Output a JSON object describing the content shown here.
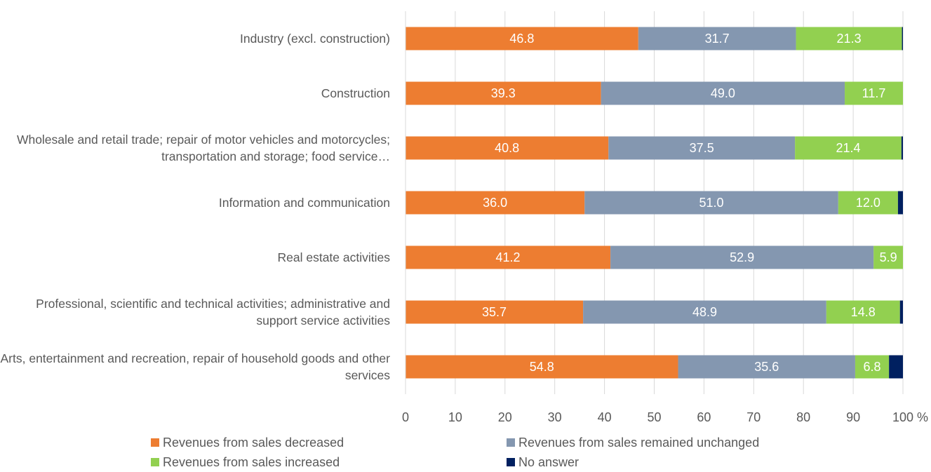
{
  "chart_data": {
    "type": "stacked-bar-horizontal",
    "categories": [
      "Industry (excl. construction)",
      "Construction",
      "Wholesale and retail trade; repair of motor vehicles and motorcycles; transportation and storage; food service…",
      "Information and communication",
      "Real estate activities",
      "Professional, scientific and technical activities; administrative and support service activities",
      "Arts, entertainment and recreation, repair of household goods and other services"
    ],
    "series": [
      {
        "name": "Revenues from sales decreased",
        "color": "#ed7d31",
        "values": [
          46.8,
          39.3,
          40.8,
          36,
          41.2,
          35.7,
          54.8
        ],
        "value_labels": [
          "46.8",
          "39.3",
          "40.8",
          "36.0",
          "41.2",
          "35.7",
          "54.8"
        ]
      },
      {
        "name": "Revenues from sales remained unchanged",
        "color": "#8497b0",
        "values": [
          31.7,
          49,
          37.5,
          51,
          52.9,
          48.9,
          35.6
        ],
        "value_labels": [
          "31.7",
          "49.0",
          "37.5",
          "51.0",
          "52.9",
          "48.9",
          "35.6"
        ]
      },
      {
        "name": "Revenues from sales increased",
        "color": "#92d050",
        "values": [
          21.3,
          11.7,
          21.4,
          12,
          5.9,
          14.8,
          6.8
        ],
        "value_labels": [
          "21.3",
          "11.7",
          "21.4",
          "12.0",
          "5.9",
          "14.8",
          "6.8"
        ]
      },
      {
        "name": "No answer",
        "color": "#002060",
        "values": [
          0.2,
          0,
          0.3,
          1,
          0,
          0.6,
          2.8
        ]
      }
    ],
    "xlim": [
      0,
      100
    ],
    "xticks": [
      0,
      10,
      20,
      30,
      40,
      50,
      60,
      70,
      80,
      90,
      100
    ],
    "x_unit": "%",
    "grid": true,
    "legend": "bottom"
  }
}
